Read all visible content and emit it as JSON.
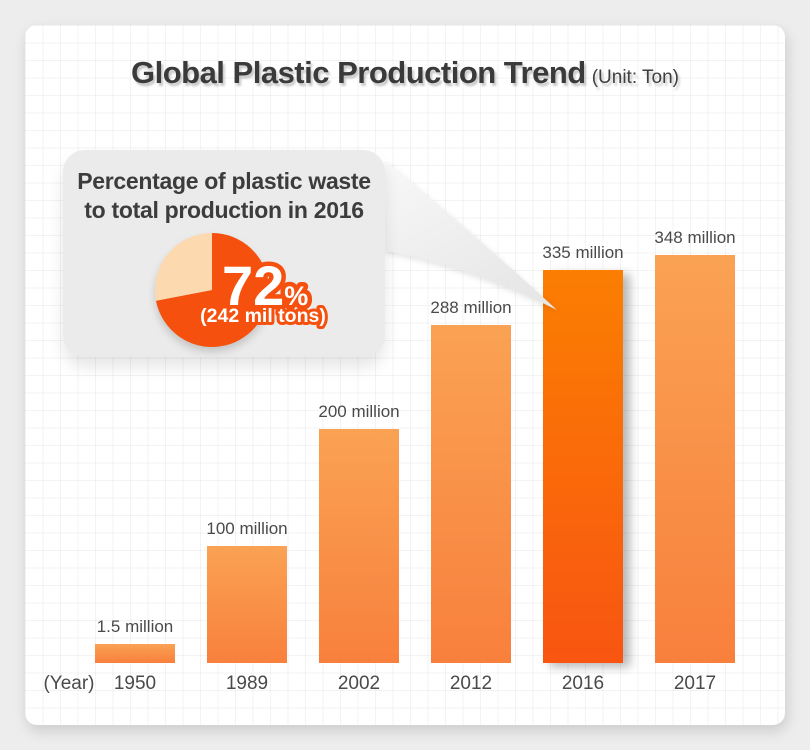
{
  "title": {
    "main": "Global Plastic Production Trend",
    "unit_note": "(Unit: Ton)"
  },
  "callout": {
    "heading_line1": "Percentage of plastic waste",
    "heading_line2": "to total production in 2016",
    "pie": {
      "percent_label": "72",
      "percent_sign": "%",
      "sub_label": "(242 mil tons)",
      "waste_percent": 72,
      "remainder_percent": 28,
      "slice_color": "#F5500D",
      "remainder_color": "#FCD9AE"
    }
  },
  "chart_data": {
    "type": "bar",
    "title": "Global Plastic Production Trend",
    "unit_note": "(Unit: Ton)",
    "categories": [
      "1950",
      "1989",
      "2002",
      "2012",
      "2016",
      "2017"
    ],
    "values": [
      1.5,
      100,
      200,
      288,
      335,
      348
    ],
    "value_labels": [
      "1.5 million",
      "100 million",
      "200 million",
      "288 million",
      "335 million",
      "348 million"
    ],
    "x_axis_label": "(Year)",
    "ylim": [
      0,
      348
    ],
    "highlight_index": 4,
    "legend": "none",
    "grid": "decorative square background grid",
    "annotation": "Speech bubble with pie chart points to 2016 bar: 72% (242 mil tons) of 2016 production became waste"
  },
  "colors": {
    "bar_gradient_top": "#FAA254",
    "bar_gradient_bottom": "#F8803D",
    "highlight_bar_top": "#FB7E02",
    "highlight_bar_bottom": "#F85511",
    "pie_main": "#F5500D",
    "pie_remainder": "#FCD9AE",
    "page_background": "#EDEDED",
    "card_background": "#FFFFFF",
    "bubble_background": "#EBEBEB",
    "text_dark": "#3C3C3C",
    "label_gray": "#4A4A4A"
  }
}
